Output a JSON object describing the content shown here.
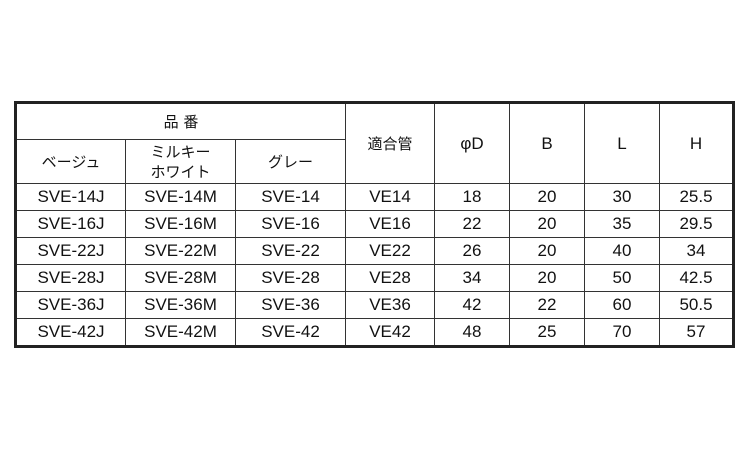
{
  "header": {
    "group_label": "品 番",
    "color_columns": [
      "ベージュ",
      "ミルキー\nホワイト",
      "グレー"
    ],
    "other_columns": [
      "適合管",
      "φD",
      "B",
      "L",
      "H"
    ]
  },
  "rows": [
    [
      "SVE-14J",
      "SVE-14M",
      "SVE-14",
      "VE14",
      "18",
      "20",
      "30",
      "25.5"
    ],
    [
      "SVE-16J",
      "SVE-16M",
      "SVE-16",
      "VE16",
      "22",
      "20",
      "35",
      "29.5"
    ],
    [
      "SVE-22J",
      "SVE-22M",
      "SVE-22",
      "VE22",
      "26",
      "20",
      "40",
      "34"
    ],
    [
      "SVE-28J",
      "SVE-28M",
      "SVE-28",
      "VE28",
      "34",
      "20",
      "50",
      "42.5"
    ],
    [
      "SVE-36J",
      "SVE-36M",
      "SVE-36",
      "VE36",
      "42",
      "22",
      "60",
      "50.5"
    ],
    [
      "SVE-42J",
      "SVE-42M",
      "SVE-42",
      "VE42",
      "48",
      "25",
      "70",
      "57"
    ]
  ]
}
